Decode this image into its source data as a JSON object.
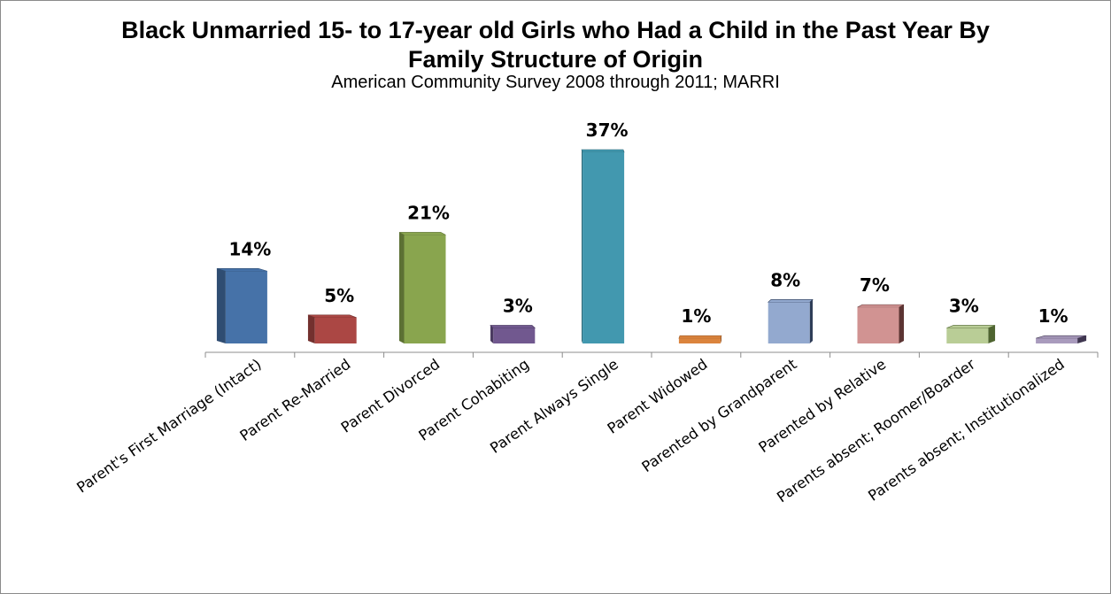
{
  "chart_data": {
    "type": "bar",
    "title_line1": "Black Unmarried 15- to 17-year old Girls who Had a Child in the Past Year By",
    "title_line2": "Family Structure of Origin",
    "subtitle": "American Community Survey 2008 through 2011; MARRI",
    "xlabel": "",
    "ylabel": "",
    "ylim": [
      0,
      37
    ],
    "grid": false,
    "legend": "none",
    "categories": [
      "Parent's First Marriage (Intact)",
      "Parent Re-Married",
      "Parent Divorced",
      "Parent Cohabiting",
      "Parent Always Single",
      "Parent Widowed",
      "Parented by Grandparent",
      "Parented by Relative",
      "Parents absent; Roomer/Boarder",
      "Parents absent; Institutionalized"
    ],
    "values": [
      14,
      5,
      21,
      3,
      37,
      1,
      8,
      7,
      3,
      1
    ],
    "data_labels": [
      "14%",
      "5%",
      "21%",
      "3%",
      "37%",
      "1%",
      "8%",
      "7%",
      "3%",
      "1%"
    ],
    "colors": [
      "#4672a8",
      "#ab4744",
      "#89a54e",
      "#71588f",
      "#4298af",
      "#db843d",
      "#93a9cf",
      "#d19392",
      "#b9cd96",
      "#a99bbd"
    ],
    "side_colors": [
      "#2f4d72",
      "#73302e",
      "#5c7034",
      "#4b3b61",
      "#2c6676",
      "#9a5a29",
      "#2f3d58",
      "#5c3433",
      "#4e6430",
      "#3f3650"
    ]
  }
}
